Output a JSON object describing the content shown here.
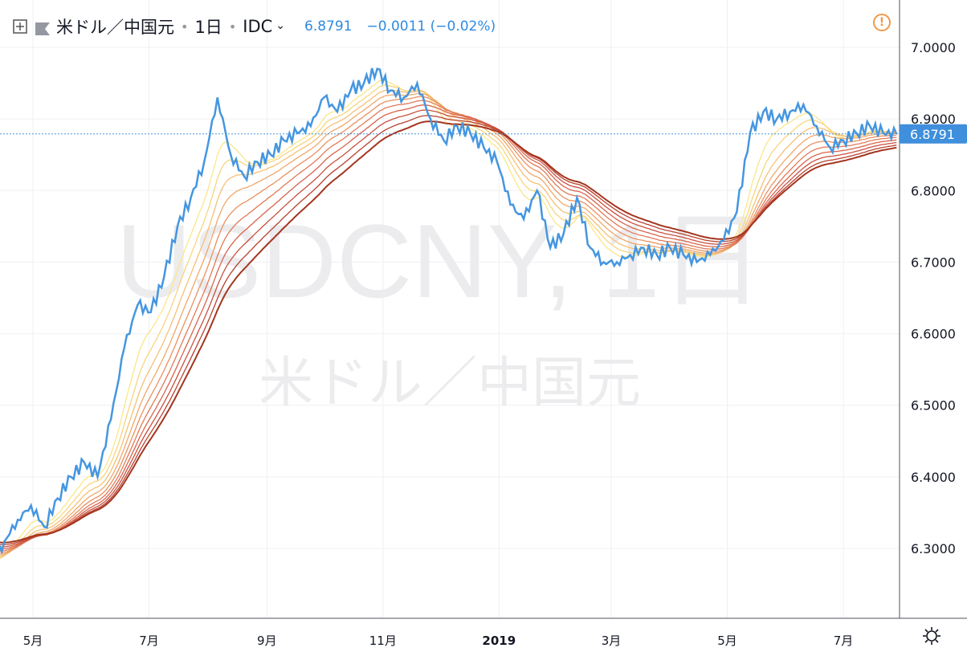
{
  "header": {
    "symbol": "米ドル／中国元",
    "interval": "1日",
    "source": "IDC",
    "price": "6.8791",
    "change": "−0.0011 (−0.02%)"
  },
  "watermark": {
    "line1": "USDCNY, 1日",
    "line2": "米ドル／中国元"
  },
  "price_tag": "6.8791",
  "colors": {
    "price_line": "#4596e0",
    "ribbon": [
      "#fbe68a",
      "#f8d57e",
      "#f5c074",
      "#f0a86a",
      "#ea9160",
      "#e27a57",
      "#d8644d",
      "#c95040",
      "#b8412f",
      "#a3361f"
    ],
    "tag_bg": "#3f8fdc",
    "warning": "#f09a4d"
  },
  "icons": [
    "plus-square-icon",
    "flag-icon",
    "chevron-down-icon",
    "warning-icon",
    "gear-icon"
  ],
  "chart_data": {
    "type": "line",
    "title": "USDCNY, 1日",
    "x_axis": {
      "ticks": [
        "5月",
        "7月",
        "9月",
        "11月",
        "2019",
        "3月",
        "5月",
        "7月"
      ],
      "range": [
        "2018-04",
        "2019-08"
      ]
    },
    "y_axis": {
      "ticks": [
        "7.0000",
        "6.9000",
        "6.8000",
        "6.7000",
        "6.6000",
        "6.5000",
        "6.4000",
        "6.3000"
      ],
      "range": [
        6.21,
        7.04
      ]
    },
    "grid": true,
    "last_value": 6.8791,
    "series": [
      {
        "x": [
          "2018-04-09",
          "2018-04-16",
          "2018-04-23",
          "2018-04-30",
          "2018-05-07",
          "2018-05-14",
          "2018-05-21",
          "2018-05-28",
          "2018-06-04",
          "2018-06-11",
          "2018-06-18",
          "2018-06-25",
          "2018-07-02",
          "2018-07-09",
          "2018-07-16",
          "2018-07-23",
          "2018-07-30",
          "2018-08-06",
          "2018-08-13",
          "2018-08-20",
          "2018-08-27",
          "2018-09-03",
          "2018-09-10",
          "2018-09-17",
          "2018-09-24",
          "2018-10-01",
          "2018-10-08",
          "2018-10-15",
          "2018-10-22",
          "2018-10-29",
          "2018-11-05",
          "2018-11-12",
          "2018-11-19",
          "2018-11-26",
          "2018-12-03",
          "2018-12-10",
          "2018-12-17",
          "2018-12-24",
          "2018-12-31",
          "2019-01-07",
          "2019-01-14",
          "2019-01-21",
          "2019-01-28",
          "2019-02-04",
          "2019-02-11",
          "2019-02-18",
          "2019-02-25",
          "2019-03-04",
          "2019-03-11",
          "2019-03-18",
          "2019-03-25",
          "2019-04-01",
          "2019-04-08",
          "2019-04-15",
          "2019-04-22",
          "2019-04-29",
          "2019-05-06",
          "2019-05-13",
          "2019-05-20",
          "2019-05-27",
          "2019-06-03",
          "2019-06-10",
          "2019-06-17",
          "2019-06-24",
          "2019-07-01",
          "2019-07-08",
          "2019-07-15",
          "2019-07-22",
          "2019-07-29"
        ],
        "values": [
          6.28,
          6.31,
          6.34,
          6.36,
          6.33,
          6.37,
          6.4,
          6.42,
          6.4,
          6.48,
          6.58,
          6.64,
          6.63,
          6.68,
          6.75,
          6.79,
          6.84,
          6.93,
          6.85,
          6.82,
          6.84,
          6.85,
          6.87,
          6.88,
          6.89,
          6.93,
          6.91,
          6.94,
          6.95,
          6.97,
          6.94,
          6.93,
          6.95,
          6.9,
          6.87,
          6.89,
          6.88,
          6.86,
          6.84,
          6.78,
          6.76,
          6.8,
          6.72,
          6.74,
          6.79,
          6.72,
          6.7,
          6.7,
          6.71,
          6.72,
          6.71,
          6.72,
          6.71,
          6.7,
          6.71,
          6.73,
          6.77,
          6.88,
          6.91,
          6.9,
          6.91,
          6.92,
          6.89,
          6.86,
          6.87,
          6.88,
          6.89,
          6.88,
          6.879
        ]
      }
    ]
  }
}
